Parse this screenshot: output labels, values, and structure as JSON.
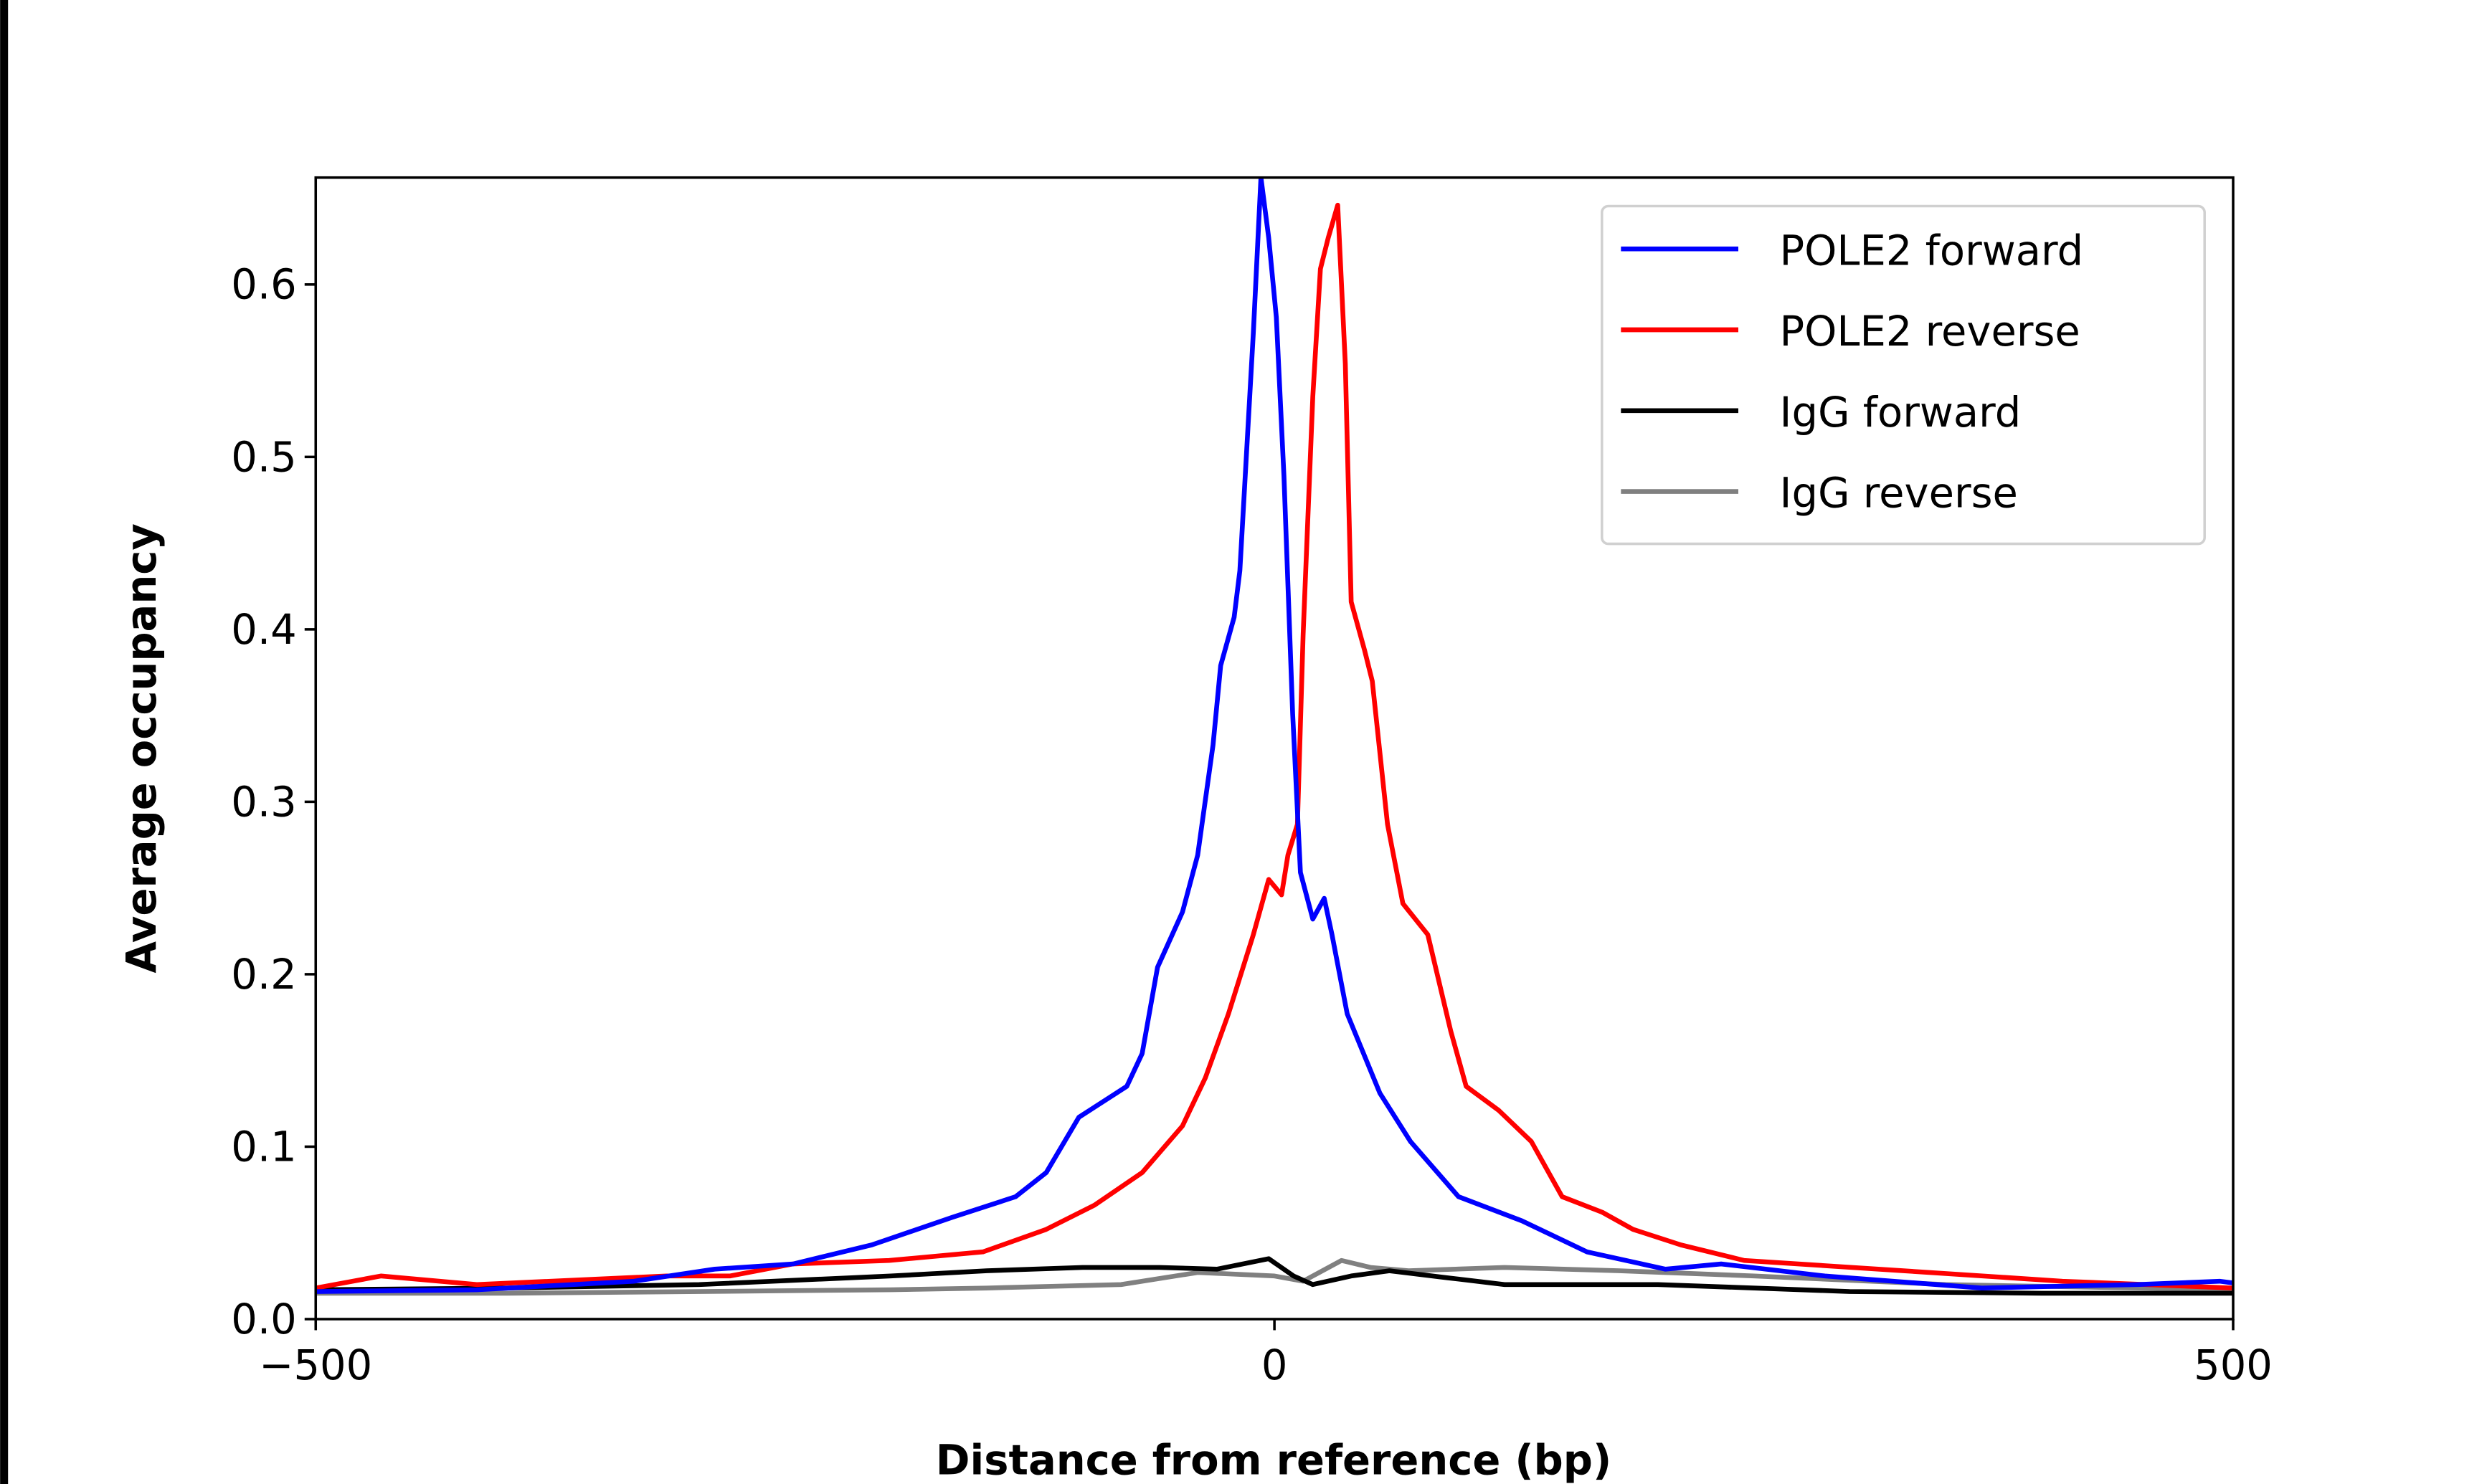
{
  "chart_data": {
    "type": "line",
    "title": "",
    "xlabel": "Distance from reference (bp)",
    "ylabel": "Average occupancy",
    "xlim": [
      -500,
      500
    ],
    "ylim": [
      0,
      0.662
    ],
    "xticks": [
      -500,
      0,
      500
    ],
    "xtick_labels": [
      "−500",
      "0",
      "500"
    ],
    "yticks": [
      0.0,
      0.1,
      0.2,
      0.3,
      0.4,
      0.5,
      0.6
    ],
    "ytick_labels": [
      "0.0",
      "0.1",
      "0.2",
      "0.3",
      "0.4",
      "0.5",
      "0.6"
    ],
    "grid": false,
    "legend_position": "top-right",
    "series": [
      {
        "name": "POLE2 forward",
        "color": "#0000ff",
        "x": [
          -500,
          -416,
          -334,
          -292,
          -251,
          -210,
          -168,
          -135,
          -119,
          -102,
          -77,
          -69,
          -61,
          -48,
          -40,
          -32,
          -28,
          -21,
          -18,
          -11,
          -7,
          -3,
          1,
          5,
          9.5,
          13.6,
          20,
          26,
          30,
          38,
          55,
          71,
          96,
          129,
          163,
          204,
          233,
          287,
          369,
          450,
          493,
          500
        ],
        "y": [
          0.016,
          0.017,
          0.022,
          0.029,
          0.032,
          0.043,
          0.059,
          0.071,
          0.085,
          0.117,
          0.135,
          0.154,
          0.204,
          0.236,
          0.269,
          0.333,
          0.379,
          0.407,
          0.434,
          0.572,
          0.662,
          0.627,
          0.581,
          0.489,
          0.351,
          0.259,
          0.232,
          0.244,
          0.223,
          0.177,
          0.131,
          0.103,
          0.071,
          0.057,
          0.039,
          0.029,
          0.032,
          0.025,
          0.018,
          0.02,
          0.022,
          0.021
        ]
      },
      {
        "name": "POLE2 reverse",
        "color": "#ff0000",
        "x": [
          -500,
          -466,
          -416,
          -317,
          -284,
          -251,
          -201,
          -152,
          -119,
          -94,
          -69,
          -48,
          -36,
          -24,
          -11,
          -3,
          3.7,
          7,
          12,
          15,
          20,
          24,
          28,
          33,
          37,
          40,
          47,
          51,
          59,
          67,
          80,
          92,
          100,
          117,
          134,
          150,
          171,
          187,
          212,
          245,
          328,
          411,
          500
        ],
        "y": [
          0.018,
          0.025,
          0.02,
          0.025,
          0.025,
          0.032,
          0.034,
          0.039,
          0.052,
          0.066,
          0.085,
          0.112,
          0.14,
          0.177,
          0.223,
          0.255,
          0.246,
          0.269,
          0.287,
          0.397,
          0.535,
          0.609,
          0.627,
          0.646,
          0.554,
          0.416,
          0.388,
          0.37,
          0.287,
          0.241,
          0.223,
          0.167,
          0.135,
          0.121,
          0.103,
          0.071,
          0.062,
          0.052,
          0.043,
          0.034,
          0.028,
          0.022,
          0.018
        ]
      },
      {
        "name": "IgG forward",
        "color": "#000000",
        "x": [
          -500,
          -400,
          -300,
          -200,
          -150,
          -100,
          -60,
          -30,
          -3,
          10,
          20,
          40,
          60,
          90,
          120,
          200,
          300,
          400,
          500
        ],
        "y": [
          0.017,
          0.018,
          0.02,
          0.025,
          0.028,
          0.03,
          0.03,
          0.029,
          0.035,
          0.025,
          0.02,
          0.025,
          0.028,
          0.024,
          0.02,
          0.02,
          0.016,
          0.015,
          0.015
        ]
      },
      {
        "name": "IgG reverse",
        "color": "#808080",
        "x": [
          -500,
          -400,
          -300,
          -200,
          -150,
          -80,
          -40,
          0,
          15,
          35,
          50,
          70,
          120,
          180,
          250,
          350,
          500
        ],
        "y": [
          0.015,
          0.015,
          0.016,
          0.017,
          0.018,
          0.02,
          0.027,
          0.025,
          0.022,
          0.034,
          0.03,
          0.028,
          0.03,
          0.028,
          0.025,
          0.02,
          0.017
        ]
      }
    ]
  }
}
